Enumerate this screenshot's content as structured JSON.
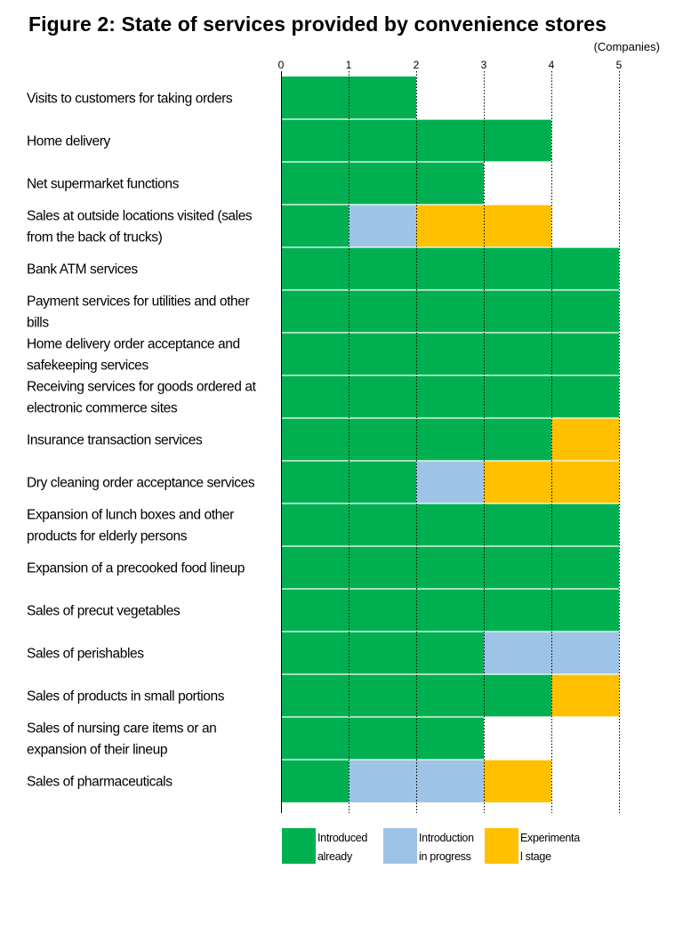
{
  "chart_data": {
    "type": "bar",
    "orientation": "horizontal",
    "stacked": true,
    "title": "Figure 2: State of services provided by convenience stores",
    "unit_label": "(Companies)",
    "xlim": [
      0,
      5
    ],
    "x_ticks": [
      "0",
      "1",
      "2",
      "3",
      "4",
      "5"
    ],
    "grid": "vertical dotted",
    "legend_placement": "bottom",
    "categories": [
      "Visits to customers for taking orders",
      "Home delivery",
      "Net supermarket functions",
      "Sales at outside locations visited (sales from the back of trucks)",
      "Bank ATM services",
      "Payment services for utilities and other bills",
      "Home delivery order acceptance and safekeeping services",
      "Receiving services for goods ordered at electronic commerce sites",
      "Insurance transaction services",
      "Dry cleaning order acceptance services",
      "Expansion of lunch boxes and other products for elderly persons",
      "Expansion of a precooked food lineup",
      "Sales of precut vegetables",
      "Sales of perishables",
      "Sales of products in small portions",
      "Sales of nursing care items or an expansion of their lineup",
      "Sales of pharmaceuticals"
    ],
    "category_lines": [
      [
        "Visits to customers for taking orders"
      ],
      [
        "Home delivery"
      ],
      [
        "Net supermarket functions"
      ],
      [
        "Sales at outside locations visited (sales",
        "from the back of trucks)"
      ],
      [
        "Bank ATM services"
      ],
      [
        "Payment services for utilities and other",
        "bills"
      ],
      [
        "Home delivery order acceptance and",
        "safekeeping services"
      ],
      [
        "Receiving services for goods ordered at",
        "electronic commerce sites"
      ],
      [
        "Insurance transaction services"
      ],
      [
        "Dry cleaning order acceptance services"
      ],
      [
        "Expansion of lunch boxes and other",
        "products for elderly persons"
      ],
      [
        "Expansion of a precooked food lineup"
      ],
      [
        "Sales of precut vegetables"
      ],
      [
        "Sales of perishables"
      ],
      [
        "Sales of products in small portions"
      ],
      [
        "Sales of nursing care items or an",
        "expansion of their lineup"
      ],
      [
        "Sales of pharmaceuticals"
      ]
    ],
    "series": [
      {
        "name": "Introduced already",
        "legend_lines": [
          "Introduced",
          "already"
        ],
        "color": "#00b050",
        "values": [
          2,
          4,
          3,
          1,
          5,
          5,
          5,
          5,
          4,
          2,
          5,
          5,
          5,
          3,
          4,
          3,
          1
        ]
      },
      {
        "name": "Introduction in progress",
        "legend_lines": [
          "Introduction",
          "in progress"
        ],
        "color": "#9dc3e6",
        "values": [
          0,
          0,
          0,
          1,
          0,
          0,
          0,
          0,
          0,
          1,
          0,
          0,
          0,
          2,
          0,
          0,
          2
        ]
      },
      {
        "name": "Experimental stage",
        "legend_lines": [
          "Experimenta",
          "l stage"
        ],
        "color": "#ffc000",
        "values": [
          0,
          0,
          0,
          2,
          0,
          0,
          0,
          0,
          1,
          2,
          0,
          0,
          0,
          0,
          1,
          0,
          1
        ]
      }
    ]
  }
}
